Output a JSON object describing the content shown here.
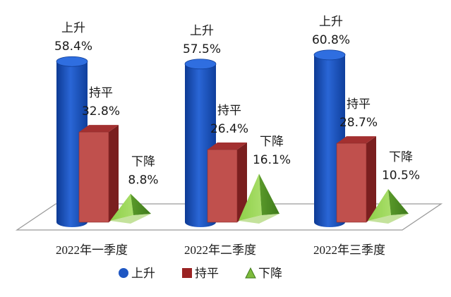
{
  "chart_data": {
    "type": "bar",
    "categories": [
      "2022年一季度",
      "2022年二季度",
      "2022年三季度"
    ],
    "series": [
      {
        "name": "上升",
        "values": [
          58.4,
          57.5,
          60.8
        ],
        "labels": [
          "58.4%",
          "57.5%",
          "60.8%"
        ],
        "shape": "cylinder",
        "color": "#1f57c3"
      },
      {
        "name": "持平",
        "values": [
          32.8,
          26.4,
          28.7
        ],
        "labels": [
          "32.8%",
          "26.4%",
          "28.7%"
        ],
        "shape": "box",
        "color": "#c0392b"
      },
      {
        "name": "下降",
        "values": [
          8.8,
          16.1,
          10.5
        ],
        "labels": [
          "8.8%",
          "16.1%",
          "10.5%"
        ],
        "shape": "pyramid",
        "color": "#7dbb3c"
      }
    ],
    "legend": {
      "placement": "bottom"
    },
    "grid": false,
    "ylim": [
      0,
      70
    ]
  }
}
